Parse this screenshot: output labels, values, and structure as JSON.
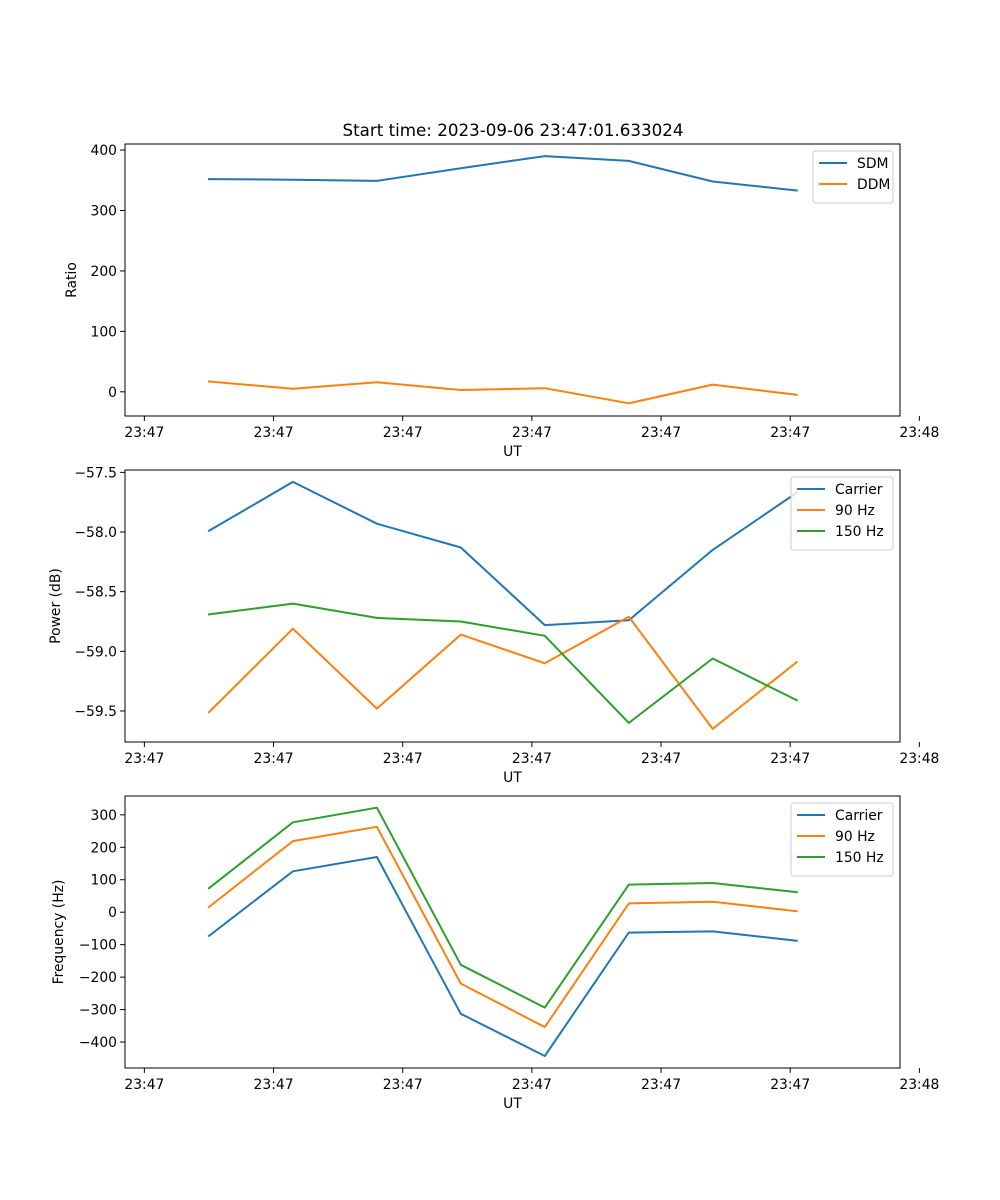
{
  "title": "Start time: 2023-09-06 23:47:01.633024",
  "chart_data": [
    {
      "type": "line",
      "ylabel": "Ratio",
      "xlabel": "UT",
      "x": [
        0.5,
        1.15,
        1.8,
        2.45,
        3.1,
        3.75,
        4.4,
        5.05
      ],
      "xlim": [
        -0.15,
        5.85
      ],
      "xticks": [
        0,
        1,
        2,
        3,
        4,
        5,
        6
      ],
      "xtick_labels": [
        "23:47",
        "23:47",
        "23:47",
        "23:47",
        "23:47",
        "23:47",
        "23:48"
      ],
      "ylim": [
        -40,
        410
      ],
      "yticks": [
        0,
        100,
        200,
        300,
        400
      ],
      "ytick_labels": [
        "0",
        "100",
        "200",
        "300",
        "400"
      ],
      "legend_position": "top-right",
      "series": [
        {
          "name": "SDM",
          "color": "#1f77b4",
          "values": [
            352,
            351,
            349,
            370,
            390,
            382,
            348,
            333
          ]
        },
        {
          "name": "DDM",
          "color": "#ff7f0e",
          "values": [
            17,
            5,
            16,
            3,
            6,
            -19,
            12,
            -5
          ]
        }
      ]
    },
    {
      "type": "line",
      "ylabel": "Power (dB)",
      "xlabel": "UT",
      "x": [
        0.5,
        1.15,
        1.8,
        2.45,
        3.1,
        3.75,
        4.4,
        5.05
      ],
      "xlim": [
        -0.15,
        5.85
      ],
      "xticks": [
        0,
        1,
        2,
        3,
        4,
        5,
        6
      ],
      "xtick_labels": [
        "23:47",
        "23:47",
        "23:47",
        "23:47",
        "23:47",
        "23:47",
        "23:48"
      ],
      "ylim": [
        -59.76,
        -57.48
      ],
      "yticks": [
        -57.5,
        -58.0,
        -58.5,
        -59.0,
        -59.5
      ],
      "ytick_labels": [
        "−57.5",
        "−58.0",
        "−58.5",
        "−59.0",
        "−59.5"
      ],
      "legend_position": "top-right",
      "series": [
        {
          "name": "Carrier",
          "color": "#1f77b4",
          "values": [
            -57.99,
            -57.58,
            -57.93,
            -58.13,
            -58.78,
            -58.74,
            -58.15,
            -57.67
          ]
        },
        {
          "name": "90 Hz",
          "color": "#ff7f0e",
          "values": [
            -59.51,
            -58.81,
            -59.48,
            -58.86,
            -59.1,
            -58.71,
            -59.65,
            -59.09
          ]
        },
        {
          "name": "150 Hz",
          "color": "#2ca02c",
          "values": [
            -58.69,
            -58.6,
            -58.72,
            -58.75,
            -58.87,
            -59.6,
            -59.06,
            -59.41
          ]
        }
      ]
    },
    {
      "type": "line",
      "ylabel": "Frequency (Hz)",
      "xlabel": "UT",
      "x": [
        0.5,
        1.15,
        1.8,
        2.45,
        3.1,
        3.75,
        4.4,
        5.05
      ],
      "xlim": [
        -0.15,
        5.85
      ],
      "xticks": [
        0,
        1,
        2,
        3,
        4,
        5,
        6
      ],
      "xtick_labels": [
        "23:47",
        "23:47",
        "23:47",
        "23:47",
        "23:47",
        "23:47",
        "23:48"
      ],
      "ylim": [
        -480,
        358
      ],
      "yticks": [
        300,
        200,
        100,
        0,
        -100,
        -200,
        -300,
        -400
      ],
      "ytick_labels": [
        "300",
        "200",
        "100",
        "0",
        "−100",
        "−200",
        "−300",
        "−400"
      ],
      "legend_position": "top-right",
      "series": [
        {
          "name": "Carrier",
          "color": "#1f77b4",
          "values": [
            -73,
            126,
            170,
            -313,
            -443,
            -63,
            -59,
            -88
          ]
        },
        {
          "name": "90 Hz",
          "color": "#ff7f0e",
          "values": [
            16,
            219,
            263,
            -220,
            -354,
            27,
            32,
            3
          ]
        },
        {
          "name": "150 Hz",
          "color": "#2ca02c",
          "values": [
            74,
            277,
            322,
            -162,
            -294,
            85,
            90,
            62
          ]
        }
      ]
    }
  ]
}
